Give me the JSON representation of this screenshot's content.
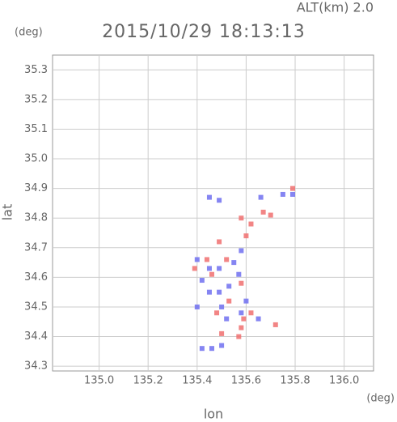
{
  "chart_data": {
    "type": "scatter",
    "title": "2015/10/29 18:13:13",
    "subtitle": "ALT(km) 2.0",
    "y_unit": "(deg)",
    "x_unit": "(deg)",
    "xlabel": "lon",
    "ylabel": "lat",
    "xlim": [
      134.81,
      136.12
    ],
    "ylim": [
      34.284,
      35.35
    ],
    "xticks": [
      {
        "value": 135,
        "label": "135.0"
      },
      135.2,
      135.4,
      135.6,
      135.8,
      {
        "value": 136,
        "label": "136.0"
      }
    ],
    "yticks": [
      34.3,
      34.4,
      34.5,
      34.6,
      34.7,
      34.8,
      34.9,
      {
        "value": 35,
        "label": "35.0"
      },
      35.1,
      35.2,
      35.3
    ],
    "series": [
      {
        "color": "#7070f0",
        "x": [
          135.45,
          135.49,
          135.75,
          135.79,
          135.66,
          135.4,
          135.45,
          135.49,
          135.57,
          135.53,
          135.42,
          135.45,
          135.5,
          135.58,
          135.52,
          135.65,
          135.4,
          135.42,
          135.46,
          135.5,
          135.58,
          135.55,
          135.49,
          135.6
        ],
        "values": [
          34.87,
          34.86,
          34.88,
          34.88,
          34.87,
          34.66,
          34.63,
          34.63,
          34.61,
          34.57,
          34.59,
          34.55,
          34.5,
          34.48,
          34.46,
          34.46,
          34.5,
          34.36,
          34.36,
          34.37,
          34.69,
          34.65,
          34.55,
          34.52
        ]
      },
      {
        "color": "#f07070",
        "x": [
          135.79,
          135.58,
          135.7,
          135.62,
          135.49,
          135.44,
          135.52,
          135.46,
          135.58,
          135.53,
          135.59,
          135.58,
          135.62,
          135.57,
          135.5,
          135.72,
          135.48,
          135.39,
          135.6,
          135.67
        ],
        "values": [
          34.9,
          34.8,
          34.81,
          34.78,
          34.72,
          34.66,
          34.66,
          34.61,
          34.58,
          34.52,
          34.46,
          34.43,
          34.48,
          34.4,
          34.41,
          34.44,
          34.48,
          34.63,
          34.74,
          34.82
        ]
      }
    ]
  }
}
